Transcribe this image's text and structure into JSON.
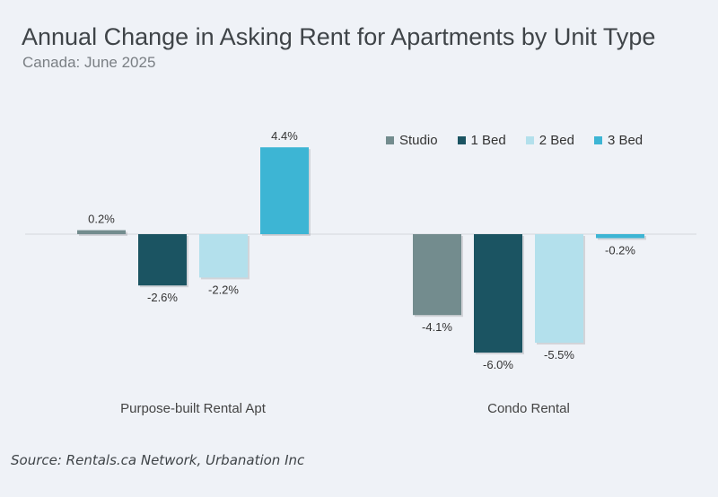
{
  "chart_data": {
    "type": "bar",
    "title": "Annual Change in Asking Rent for Apartments by Unit Type",
    "subtitle": "Canada: June 2025",
    "source": "Source: Rentals.ca Network, Urbanation Inc",
    "categories": [
      "Purpose-built Rental Apt",
      "Condo Rental"
    ],
    "series": [
      {
        "name": "Studio",
        "color": "#738c8e",
        "values": [
          0.2,
          -4.1
        ],
        "labels": [
          "0.2%",
          "-4.1%"
        ]
      },
      {
        "name": "1 Bed",
        "color": "#1b5462",
        "values": [
          -2.6,
          -6.0
        ],
        "labels": [
          "-2.6%",
          "-6.0%"
        ]
      },
      {
        "name": "2 Bed",
        "color": "#b3e0ec",
        "values": [
          -2.2,
          -5.5
        ],
        "labels": [
          "-2.2%",
          "-5.5%"
        ]
      },
      {
        "name": "3 Bed",
        "color": "#3db5d4",
        "values": [
          4.4,
          -0.2
        ],
        "labels": [
          "4.4%",
          "-0.2%"
        ]
      }
    ],
    "legend_position": "top-right",
    "grid": false
  }
}
